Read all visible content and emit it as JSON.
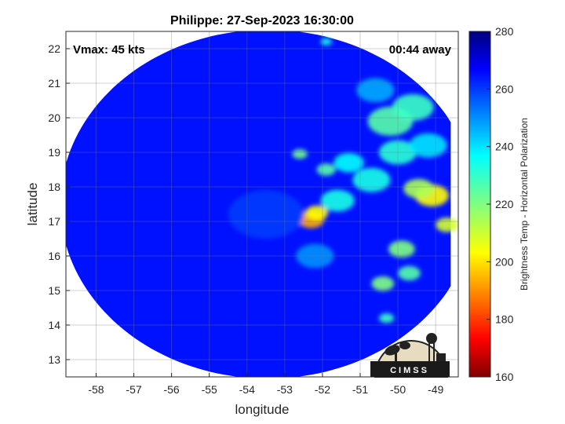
{
  "chart_data": {
    "type": "heatmap",
    "title": "Philippe: 27-Sep-2023 16:30:00",
    "xlabel": "longitude",
    "ylabel": "latitude",
    "xlim": [
      -58.8,
      -48.4
    ],
    "ylim": [
      12.5,
      22.5
    ],
    "xticks": [
      -58,
      -57,
      -56,
      -55,
      -54,
      -53,
      -52,
      -51,
      -50,
      -49
    ],
    "yticks": [
      13,
      14,
      15,
      16,
      17,
      18,
      19,
      20,
      21,
      22
    ],
    "grid": true,
    "colorbar": {
      "label": "Brightness Temp - Horizontal Polarization",
      "range": [
        160,
        280
      ],
      "ticks": [
        160,
        180,
        200,
        220,
        240,
        260,
        280
      ],
      "colormap": "jet"
    },
    "background_temp": 263,
    "swath": {
      "center": [
        -53.45,
        17.5
      ],
      "radius_lon": 5.5,
      "radius_lat": 5.05,
      "cut_lon": -48.6,
      "bottom_lat": 12.5
    },
    "features": [
      {
        "lon": -52.3,
        "lat": 17.05,
        "temp": 195,
        "size": 0.35
      },
      {
        "lon": -52.15,
        "lat": 17.25,
        "temp": 205,
        "size": 0.3
      },
      {
        "lon": -49.1,
        "lat": 17.75,
        "temp": 205,
        "size": 0.45
      },
      {
        "lon": -49.45,
        "lat": 17.95,
        "temp": 215,
        "size": 0.4
      },
      {
        "lon": -48.7,
        "lat": 16.9,
        "temp": 210,
        "size": 0.3
      },
      {
        "lon": -49.9,
        "lat": 16.2,
        "temp": 220,
        "size": 0.35
      },
      {
        "lon": -49.7,
        "lat": 15.5,
        "temp": 225,
        "size": 0.3
      },
      {
        "lon": -50.4,
        "lat": 15.2,
        "temp": 220,
        "size": 0.3
      },
      {
        "lon": -50.2,
        "lat": 19.9,
        "temp": 225,
        "size": 0.6
      },
      {
        "lon": -49.6,
        "lat": 20.3,
        "temp": 228,
        "size": 0.55
      },
      {
        "lon": -50.0,
        "lat": 19.0,
        "temp": 230,
        "size": 0.5
      },
      {
        "lon": -50.7,
        "lat": 18.2,
        "temp": 232,
        "size": 0.5
      },
      {
        "lon": -51.6,
        "lat": 17.6,
        "temp": 232,
        "size": 0.45
      },
      {
        "lon": -51.9,
        "lat": 18.5,
        "temp": 225,
        "size": 0.25
      },
      {
        "lon": -52.6,
        "lat": 18.95,
        "temp": 222,
        "size": 0.2
      },
      {
        "lon": -51.3,
        "lat": 18.7,
        "temp": 235,
        "size": 0.4
      },
      {
        "lon": -50.6,
        "lat": 20.8,
        "temp": 245,
        "size": 0.5
      },
      {
        "lon": -49.2,
        "lat": 19.2,
        "temp": 238,
        "size": 0.5
      },
      {
        "lon": -50.3,
        "lat": 14.2,
        "temp": 228,
        "size": 0.2
      },
      {
        "lon": -51.9,
        "lat": 22.2,
        "temp": 232,
        "size": 0.15
      },
      {
        "lon": -52.2,
        "lat": 16.0,
        "temp": 248,
        "size": 0.5
      },
      {
        "lon": -53.5,
        "lat": 17.2,
        "temp": 258,
        "size": 1.0
      }
    ]
  },
  "annotations": {
    "vmax": "Vmax: 45 kts",
    "away": "00:44 away"
  },
  "logo": {
    "text": "CIMSS"
  }
}
